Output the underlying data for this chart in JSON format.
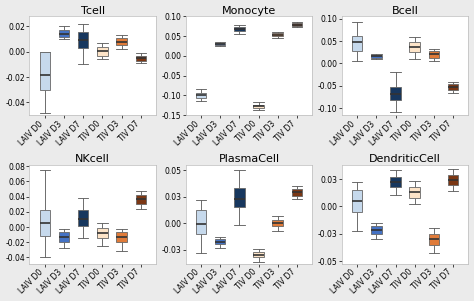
{
  "titles": [
    "Tcell",
    "Monocyte",
    "Bcell",
    "NKcell",
    "PlasmaCell",
    "DendriticCell"
  ],
  "categories": [
    "LAIV D0",
    "LAIV D3",
    "LAIV D7",
    "TIV D0",
    "TIV D3",
    "TIV D7"
  ],
  "colors": {
    "LAIV D0": "#c6d9ec",
    "LAIV D3": "#4472c4",
    "LAIV D7": "#17375e",
    "TIV D0": "#fde4c8",
    "TIV D3": "#e07b39",
    "TIV D7": "#7b3714"
  },
  "boxplot_stats": {
    "Tcell": [
      {
        "q1": -0.03,
        "med": -0.018,
        "q3": 0.0,
        "whislo": -0.048,
        "whishi": 0.0
      },
      {
        "q1": 0.012,
        "med": 0.014,
        "q3": 0.017,
        "whislo": 0.01,
        "whishi": 0.02
      },
      {
        "q1": 0.003,
        "med": 0.009,
        "q3": 0.016,
        "whislo": -0.01,
        "whishi": 0.022
      },
      {
        "q1": -0.003,
        "med": 0.001,
        "q3": 0.004,
        "whislo": -0.006,
        "whishi": 0.007
      },
      {
        "q1": 0.005,
        "med": 0.008,
        "q3": 0.011,
        "whislo": 0.002,
        "whishi": 0.013
      },
      {
        "q1": -0.007,
        "med": -0.005,
        "q3": -0.003,
        "whislo": -0.009,
        "whishi": -0.001
      }
    ],
    "Monocyte": [
      {
        "q1": -0.107,
        "med": -0.1,
        "q3": -0.094,
        "whislo": -0.115,
        "whishi": -0.085
      },
      {
        "q1": 0.028,
        "med": 0.03,
        "q3": 0.033,
        "whislo": 0.025,
        "whishi": 0.036
      },
      {
        "q1": 0.062,
        "med": 0.067,
        "q3": 0.072,
        "whislo": 0.055,
        "whishi": 0.078
      },
      {
        "q1": -0.132,
        "med": -0.128,
        "q3": -0.124,
        "whislo": -0.138,
        "whishi": -0.118
      },
      {
        "q1": 0.05,
        "med": 0.053,
        "q3": 0.057,
        "whislo": 0.046,
        "whishi": 0.06
      },
      {
        "q1": 0.076,
        "med": 0.079,
        "q3": 0.082,
        "whislo": 0.072,
        "whishi": 0.085
      }
    ],
    "Bcell": [
      {
        "q1": 0.028,
        "med": 0.048,
        "q3": 0.062,
        "whislo": 0.005,
        "whishi": 0.093
      },
      {
        "q1": 0.013,
        "med": 0.016,
        "q3": 0.019,
        "whislo": 0.01,
        "whishi": 0.022
      },
      {
        "q1": -0.082,
        "med": -0.068,
        "q3": -0.052,
        "whislo": -0.108,
        "whishi": -0.018
      },
      {
        "q1": 0.025,
        "med": 0.037,
        "q3": 0.048,
        "whislo": 0.01,
        "whishi": 0.06
      },
      {
        "q1": 0.012,
        "med": 0.02,
        "q3": 0.027,
        "whislo": 0.005,
        "whishi": 0.033
      },
      {
        "q1": -0.058,
        "med": -0.052,
        "q3": -0.046,
        "whislo": -0.065,
        "whishi": -0.042
      }
    ],
    "NKcell": [
      {
        "q1": -0.012,
        "med": 0.005,
        "q3": 0.022,
        "whislo": -0.04,
        "whishi": 0.075
      },
      {
        "q1": -0.02,
        "med": -0.013,
        "q3": -0.006,
        "whislo": -0.028,
        "whishi": -0.002
      },
      {
        "q1": 0.001,
        "med": 0.01,
        "q3": 0.022,
        "whislo": -0.015,
        "whishi": 0.038
      },
      {
        "q1": -0.015,
        "med": -0.008,
        "q3": -0.001,
        "whislo": -0.025,
        "whishi": 0.005
      },
      {
        "q1": -0.02,
        "med": -0.013,
        "q3": -0.006,
        "whislo": -0.032,
        "whishi": -0.002
      },
      {
        "q1": 0.03,
        "med": 0.037,
        "q3": 0.042,
        "whislo": 0.024,
        "whishi": 0.048
      }
    ],
    "PlasmaCell": [
      {
        "q1": -0.01,
        "med": -0.001,
        "q3": 0.012,
        "whislo": -0.028,
        "whishi": 0.022
      },
      {
        "q1": -0.02,
        "med": -0.018,
        "q3": -0.015,
        "whislo": -0.023,
        "whishi": -0.013
      },
      {
        "q1": 0.015,
        "med": 0.023,
        "q3": 0.033,
        "whislo": -0.002,
        "whishi": 0.05
      },
      {
        "q1": -0.032,
        "med": -0.03,
        "q3": -0.027,
        "whislo": -0.037,
        "whishi": -0.024
      },
      {
        "q1": -0.003,
        "med": 0.0,
        "q3": 0.003,
        "whislo": -0.007,
        "whishi": 0.007
      },
      {
        "q1": 0.026,
        "med": 0.029,
        "q3": 0.032,
        "whislo": 0.023,
        "whishi": 0.035
      }
    ],
    "DendriticCell": [
      {
        "q1": -0.005,
        "med": 0.005,
        "q3": 0.015,
        "whislo": -0.022,
        "whishi": 0.022
      },
      {
        "q1": -0.025,
        "med": -0.021,
        "q3": -0.018,
        "whislo": -0.03,
        "whishi": -0.015
      },
      {
        "q1": 0.018,
        "med": 0.022,
        "q3": 0.027,
        "whislo": 0.01,
        "whishi": 0.033
      },
      {
        "q1": 0.008,
        "med": 0.013,
        "q3": 0.018,
        "whislo": 0.002,
        "whishi": 0.023
      },
      {
        "q1": -0.035,
        "med": -0.03,
        "q3": -0.025,
        "whislo": -0.042,
        "whishi": -0.02
      },
      {
        "q1": 0.02,
        "med": 0.024,
        "q3": 0.029,
        "whislo": 0.014,
        "whishi": 0.034
      }
    ]
  },
  "ylims": {
    "Tcell": [
      -0.05,
      0.028
    ],
    "Monocyte": [
      -0.15,
      0.1
    ],
    "Bcell": [
      -0.115,
      0.105
    ],
    "NKcell": [
      -0.048,
      0.082
    ],
    "PlasmaCell": [
      -0.038,
      0.055
    ],
    "DendriticCell": [
      -0.052,
      0.038
    ]
  },
  "yticks": {
    "Tcell": [
      -0.04,
      -0.02,
      0.0,
      0.02
    ],
    "Monocyte": [
      -0.15,
      -0.1,
      -0.05,
      0.0,
      0.05,
      0.1
    ],
    "Bcell": [
      -0.1,
      -0.05,
      0.0,
      0.05,
      0.1
    ],
    "NKcell": [
      -0.04,
      -0.02,
      0.0,
      0.02,
      0.04,
      0.06,
      0.08
    ],
    "PlasmaCell": [
      -0.025,
      0.0,
      0.025,
      0.05
    ],
    "DendriticCell": [
      -0.05,
      -0.025,
      0.0,
      0.025
    ]
  },
  "bg_color": "#ebebeb",
  "panel_bg": "#ffffff",
  "grid_color": "#ffffff",
  "title_fontsize": 8,
  "tick_fontsize": 5.5,
  "box_width": 0.55,
  "linewidth": 0.6,
  "median_linewidth": 1.2
}
